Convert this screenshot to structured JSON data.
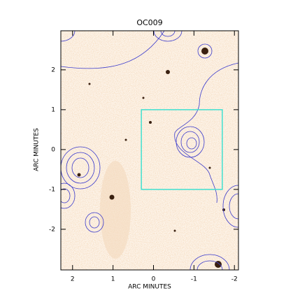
{
  "chart_data": {
    "type": "image",
    "title": "OC009",
    "x_label": "ARC MINUTES",
    "y_label": "ARC MINUTES",
    "xlim": [
      2.29,
      -2.1
    ],
    "ylim": [
      -3.02,
      2.98
    ],
    "xticks": [
      2,
      1,
      0,
      -1,
      -2
    ],
    "yticks": [
      -2,
      -1,
      0,
      1,
      2
    ],
    "box": {
      "x": [
        0.3,
        -1.7
      ],
      "y": [
        -1,
        1
      ],
      "color": "#40e0d0"
    }
  }
}
